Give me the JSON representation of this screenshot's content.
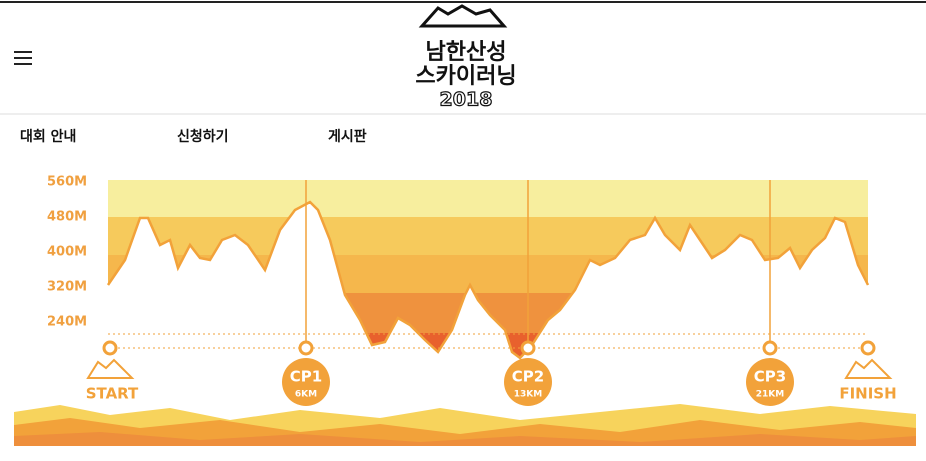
{
  "header": {
    "logo": [
      "남한산성",
      "스카이러닝",
      "2018"
    ]
  },
  "nav": [
    "대회 안내",
    "신청하기",
    "게시판"
  ],
  "course": {
    "elevation_labels": [
      "560M",
      "480M",
      "400M",
      "320M",
      "240M"
    ],
    "checkpoints": [
      {
        "name": "START"
      },
      {
        "name": "CP1",
        "distance": "6KM"
      },
      {
        "name": "CP2",
        "distance": "13KM"
      },
      {
        "name": "CP3",
        "distance": "21KM"
      },
      {
        "name": "FINISH"
      }
    ]
  }
}
